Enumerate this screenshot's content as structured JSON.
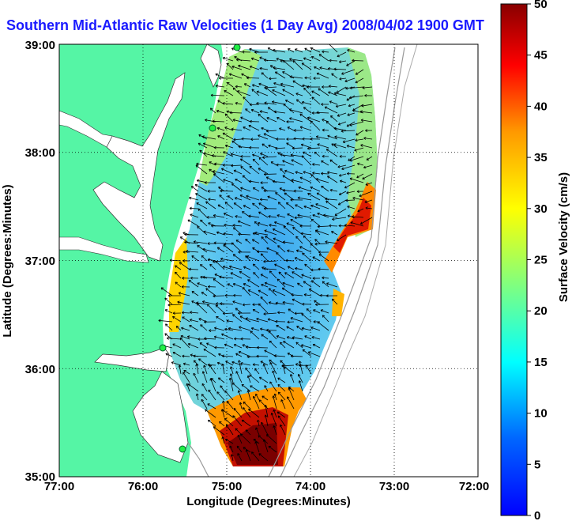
{
  "title": "Southern Mid-Atlantic Raw Velocities (1 Day Avg) 2008/04/02 1900 GMT",
  "map": {
    "xlabel": "Longitude (Degrees:Minutes)",
    "ylabel": "Latitude (Degrees:Minutes)",
    "lon_range": [
      -77,
      -72
    ],
    "lat_range": [
      35,
      39
    ],
    "x_ticks": [
      "77:00",
      "76:00",
      "75:00",
      "74:00",
      "73:00",
      "72:00"
    ],
    "y_ticks": [
      "39:00",
      "38:00",
      "37:00",
      "36:00",
      "35:00"
    ],
    "land_color": "#55f5a5",
    "grid": "dotted"
  },
  "colorbar": {
    "label": "Surface Velocity (cm/s)",
    "ticks": [
      "50",
      "45",
      "40",
      "35",
      "30",
      "25",
      "20",
      "15",
      "10",
      "5",
      "0"
    ],
    "min": 0,
    "max": 50,
    "colormap": "jet"
  }
}
